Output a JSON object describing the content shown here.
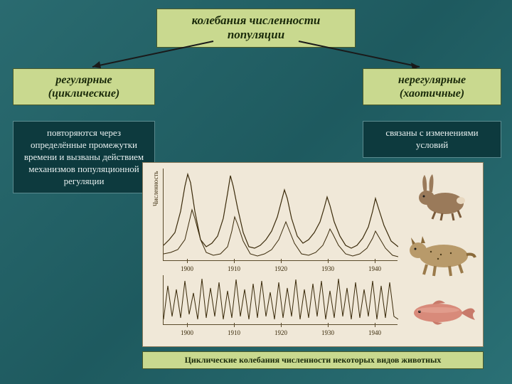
{
  "title": "колебания численности популяции",
  "left": {
    "label_line1": "регулярные",
    "label_line2": "(циклические)",
    "desc": "повторяются через определённые промежутки времени и вызваны действием механизмов популяционной регуляции"
  },
  "right": {
    "label_line1": "нерегулярные",
    "label_line2": "(хаотичные)",
    "desc": "связаны с изменениями условий"
  },
  "caption": "Циклические колебания численности некоторых видов животных",
  "chart": {
    "y_axis_label": "Численность",
    "upper_years": [
      1900,
      1910,
      1920,
      1930,
      1940
    ],
    "lower_years": [
      1900,
      1910,
      1920,
      1930,
      1940
    ],
    "series_upper_1": {
      "name": "заяц",
      "color": "#3a2a0a",
      "stroke_width": 1.2,
      "points": [
        [
          0,
          108
        ],
        [
          8,
          100
        ],
        [
          16,
          90
        ],
        [
          24,
          60
        ],
        [
          30,
          25
        ],
        [
          34,
          8
        ],
        [
          38,
          20
        ],
        [
          44,
          60
        ],
        [
          52,
          100
        ],
        [
          60,
          110
        ],
        [
          68,
          105
        ],
        [
          76,
          95
        ],
        [
          84,
          70
        ],
        [
          90,
          35
        ],
        [
          94,
          10
        ],
        [
          98,
          25
        ],
        [
          104,
          55
        ],
        [
          112,
          90
        ],
        [
          120,
          110
        ],
        [
          128,
          112
        ],
        [
          136,
          108
        ],
        [
          144,
          100
        ],
        [
          152,
          88
        ],
        [
          160,
          68
        ],
        [
          166,
          45
        ],
        [
          170,
          30
        ],
        [
          174,
          42
        ],
        [
          180,
          70
        ],
        [
          188,
          95
        ],
        [
          196,
          105
        ],
        [
          204,
          100
        ],
        [
          212,
          90
        ],
        [
          220,
          75
        ],
        [
          226,
          55
        ],
        [
          230,
          40
        ],
        [
          234,
          52
        ],
        [
          240,
          75
        ],
        [
          248,
          95
        ],
        [
          256,
          108
        ],
        [
          264,
          112
        ],
        [
          272,
          108
        ],
        [
          280,
          98
        ],
        [
          288,
          82
        ],
        [
          294,
          60
        ],
        [
          298,
          42
        ],
        [
          302,
          55
        ],
        [
          310,
          80
        ],
        [
          320,
          102
        ],
        [
          330,
          110
        ]
      ]
    },
    "series_upper_2": {
      "name": "рысь",
      "color": "#3a2a0a",
      "stroke_width": 1.0,
      "points": [
        [
          0,
          120
        ],
        [
          10,
          118
        ],
        [
          20,
          114
        ],
        [
          30,
          100
        ],
        [
          36,
          75
        ],
        [
          40,
          58
        ],
        [
          44,
          70
        ],
        [
          52,
          100
        ],
        [
          60,
          118
        ],
        [
          70,
          122
        ],
        [
          80,
          120
        ],
        [
          90,
          110
        ],
        [
          96,
          88
        ],
        [
          100,
          68
        ],
        [
          104,
          78
        ],
        [
          112,
          102
        ],
        [
          122,
          120
        ],
        [
          132,
          123
        ],
        [
          142,
          120
        ],
        [
          152,
          114
        ],
        [
          162,
          100
        ],
        [
          168,
          85
        ],
        [
          172,
          75
        ],
        [
          176,
          85
        ],
        [
          184,
          105
        ],
        [
          194,
          120
        ],
        [
          204,
          122
        ],
        [
          214,
          118
        ],
        [
          224,
          108
        ],
        [
          230,
          95
        ],
        [
          234,
          85
        ],
        [
          238,
          92
        ],
        [
          246,
          108
        ],
        [
          256,
          120
        ],
        [
          266,
          123
        ],
        [
          276,
          120
        ],
        [
          286,
          112
        ],
        [
          294,
          98
        ],
        [
          298,
          88
        ],
        [
          302,
          95
        ],
        [
          312,
          112
        ],
        [
          322,
          122
        ],
        [
          330,
          124
        ]
      ]
    },
    "series_lower": {
      "name": "рыба",
      "color": "#3a2a0a",
      "stroke_width": 1.0,
      "points": [
        [
          0,
          62
        ],
        [
          6,
          15
        ],
        [
          12,
          58
        ],
        [
          18,
          20
        ],
        [
          24,
          60
        ],
        [
          30,
          8
        ],
        [
          36,
          55
        ],
        [
          42,
          25
        ],
        [
          48,
          62
        ],
        [
          54,
          5
        ],
        [
          60,
          60
        ],
        [
          66,
          18
        ],
        [
          72,
          58
        ],
        [
          78,
          10
        ],
        [
          84,
          62
        ],
        [
          90,
          22
        ],
        [
          96,
          60
        ],
        [
          102,
          6
        ],
        [
          108,
          58
        ],
        [
          114,
          20
        ],
        [
          120,
          62
        ],
        [
          126,
          12
        ],
        [
          132,
          60
        ],
        [
          138,
          8
        ],
        [
          144,
          58
        ],
        [
          150,
          24
        ],
        [
          156,
          62
        ],
        [
          162,
          10
        ],
        [
          168,
          60
        ],
        [
          174,
          18
        ],
        [
          180,
          58
        ],
        [
          186,
          6
        ],
        [
          192,
          62
        ],
        [
          198,
          20
        ],
        [
          204,
          60
        ],
        [
          210,
          12
        ],
        [
          216,
          58
        ],
        [
          222,
          8
        ],
        [
          228,
          62
        ],
        [
          234,
          22
        ],
        [
          240,
          60
        ],
        [
          246,
          5
        ],
        [
          252,
          58
        ],
        [
          258,
          18
        ],
        [
          264,
          62
        ],
        [
          270,
          10
        ],
        [
          276,
          60
        ],
        [
          282,
          20
        ],
        [
          288,
          58
        ],
        [
          294,
          8
        ],
        [
          300,
          62
        ],
        [
          306,
          15
        ],
        [
          312,
          60
        ],
        [
          318,
          10
        ],
        [
          324,
          58
        ],
        [
          330,
          62
        ]
      ]
    },
    "background_color": "#f0e8d8",
    "axis_color": "#5a4a2a",
    "tick_step": 10,
    "x_range_upper": [
      1895,
      1945
    ],
    "x_range_lower": [
      1895,
      1945
    ]
  },
  "animals": [
    {
      "name": "заяц",
      "icon": "hare"
    },
    {
      "name": "рысь",
      "icon": "lynx"
    },
    {
      "name": "рыба",
      "icon": "fish"
    }
  ],
  "colors": {
    "bg_gradient_start": "#2a6b70",
    "bg_gradient_end": "#2a7075",
    "box_bg": "#c9d98f",
    "box_border": "#4a5a2a",
    "desc_bg": "#0d3a3e",
    "desc_border": "#5a8a8e",
    "chart_bg": "#f0e8d8"
  },
  "typography": {
    "title_fontsize": 17,
    "label_fontsize": 16,
    "desc_fontsize": 13,
    "caption_fontsize": 12,
    "tick_fontsize": 9,
    "font_family": "Georgia, Times New Roman, serif",
    "font_style": "italic"
  }
}
